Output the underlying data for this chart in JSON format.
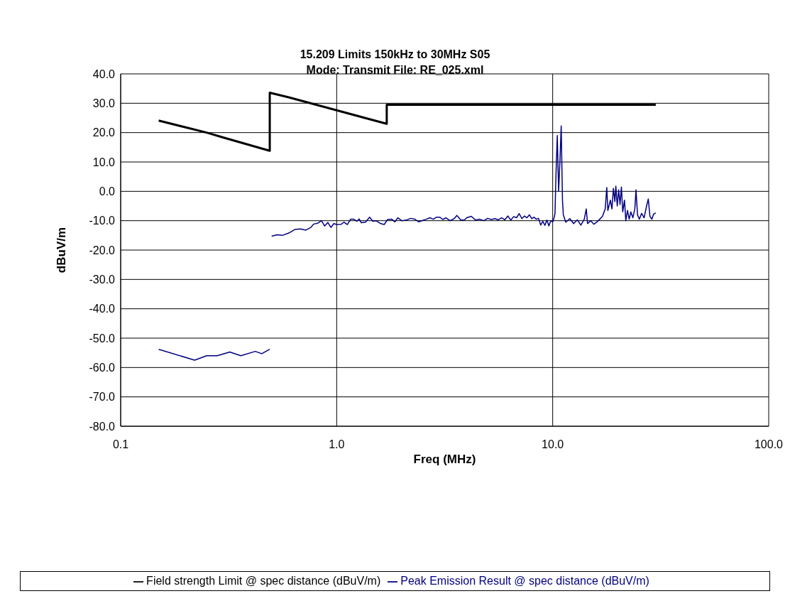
{
  "chart_data": {
    "type": "line",
    "title": "15.209 Limits 150kHz to 30MHz S05",
    "subtitle": "Mode: Transmit File: RE_025.xml",
    "xlabel": "Freq (MHz)",
    "ylabel": "dBuV/m",
    "log": "x",
    "xlim": [
      0.1,
      100
    ],
    "xticks": [
      {
        "value": 0.1,
        "label": "0.1"
      },
      {
        "value": 1,
        "label": "1.0"
      },
      {
        "value": 10,
        "label": "10.0"
      },
      {
        "value": 100,
        "label": "100.0"
      }
    ],
    "ylim": [
      -80,
      40
    ],
    "yticks": [
      {
        "value": -80,
        "label": "-80.0"
      },
      {
        "value": -70,
        "label": "-70.0"
      },
      {
        "value": -60,
        "label": "-60.0"
      },
      {
        "value": -50,
        "label": "-50.0"
      },
      {
        "value": -40,
        "label": "-40.0"
      },
      {
        "value": -30,
        "label": "-30.0"
      },
      {
        "value": -20,
        "label": "-20.0"
      },
      {
        "value": -10,
        "label": "-10.0"
      },
      {
        "value": 0,
        "label": "0.0"
      },
      {
        "value": 10,
        "label": "10.0"
      },
      {
        "value": 20,
        "label": "20.0"
      },
      {
        "value": 30,
        "label": "30.0"
      },
      {
        "value": 40,
        "label": "40.0"
      }
    ],
    "grid": true,
    "legend": "bottom",
    "marker": "none",
    "line_style": "solid",
    "series": [
      {
        "name": "Field strength Limit @ spec distance (dBuV/m)",
        "color": "#000000",
        "x": [
          0.15,
          0.25,
          0.3,
          0.49,
          0.49,
          0.6,
          1.0,
          1.705,
          1.705,
          30
        ],
        "values": [
          24.1,
          20,
          18.3,
          13.8,
          33.6,
          32,
          27.6,
          23,
          29.5,
          29.5
        ]
      },
      {
        "name": "Peak Emission Result @ spec distance (dBuV/m)",
        "color": "#000080",
        "x": [
          0.15,
          0.22,
          0.25,
          0.28,
          0.32,
          0.36,
          0.42,
          0.45,
          0.49,
          0.495,
          0.5,
          0.53,
          0.56,
          0.6,
          0.64,
          0.68,
          0.72,
          0.76,
          0.78,
          0.82,
          0.85,
          0.88,
          0.91,
          0.94,
          0.97,
          1.0,
          1.05,
          1.08,
          1.12,
          1.16,
          1.2,
          1.24,
          1.27,
          1.3,
          1.36,
          1.42,
          1.47,
          1.52,
          1.6,
          1.66,
          1.72,
          1.8,
          1.86,
          1.92,
          2.0,
          2.1,
          2.2,
          2.3,
          2.4,
          2.5,
          2.6,
          2.7,
          2.8,
          2.9,
          3.0,
          3.1,
          3.2,
          3.35,
          3.5,
          3.6,
          3.75,
          3.9,
          4.0,
          4.2,
          4.4,
          4.6,
          4.8,
          5.0,
          5.2,
          5.4,
          5.6,
          5.8,
          6.0,
          6.2,
          6.4,
          6.6,
          6.8,
          7.0,
          7.2,
          7.4,
          7.6,
          7.8,
          8.0,
          8.2,
          8.4,
          8.6,
          8.8,
          9.0,
          9.2,
          9.4,
          9.6,
          9.8,
          10.0,
          10.15,
          10.25,
          10.35,
          10.5,
          10.65,
          10.8,
          10.95,
          11.1,
          11.2,
          11.5,
          12,
          12.5,
          13.0,
          13.5,
          14.0,
          14.3,
          14.5,
          15.0,
          15.5,
          16.0,
          16.5,
          17.0,
          17.5,
          17.8,
          18.0,
          18.5,
          18.8,
          19.1,
          19.4,
          19.6,
          19.9,
          20.2,
          20.5,
          20.8,
          21.1,
          21.5,
          21.8,
          22.2,
          22.6,
          23.0,
          23.5,
          24.0,
          24.3,
          24.7,
          25.2,
          25.8,
          26.5,
          27.2,
          27.7,
          28.2,
          28.8,
          29.3,
          30.0
        ],
        "values": [
          -53.8,
          -57.5,
          -56,
          -56,
          -54.7,
          -56,
          -54.5,
          -55.3,
          -53.8,
          null,
          -15.3,
          -14.8,
          -15.0,
          -14.2,
          -13.0,
          -12.8,
          -13.2,
          -12.3,
          -11.2,
          -10.8,
          -10.0,
          -11.8,
          -10.6,
          -12.3,
          -11.0,
          -11.3,
          -11.2,
          -10.5,
          -11.3,
          -9.5,
          -9.5,
          -10.2,
          -9.4,
          -10.7,
          -10.5,
          -8.8,
          -10.2,
          -10.0,
          -11.0,
          -11.3,
          -9.6,
          -9.5,
          -10.4,
          -9.0,
          -10.0,
          -9.8,
          -9.2,
          -9.5,
          -10.4,
          -9.9,
          -9.5,
          -9.0,
          -9.5,
          -8.8,
          -8.8,
          -9.6,
          -9.0,
          -10.0,
          -9.3,
          -8.2,
          -9.7,
          -9.8,
          -9.0,
          -8.5,
          -9.8,
          -9.5,
          -10.0,
          -9.2,
          -9.6,
          -9.3,
          -9.7,
          -9.0,
          -9.7,
          -8.4,
          -9.8,
          -8.6,
          -9.0,
          -7.6,
          -9.3,
          -8.4,
          -9.0,
          -8.0,
          -9.3,
          -8.8,
          -9.5,
          -9.2,
          -11.5,
          -10.2,
          -11.6,
          -9.8,
          -11.8,
          -10.0,
          -10.4,
          -9.0,
          -7.5,
          5.0,
          19.0,
          0.0,
          10.0,
          22.3,
          -3.0,
          -8.0,
          -10.5,
          -9.3,
          -11.0,
          -9.7,
          -11.5,
          -9.5,
          -6.0,
          -11.0,
          -10.0,
          -11.2,
          -10.5,
          -9.5,
          -8.5,
          -6.0,
          1.3,
          -6.5,
          -3.0,
          -6.0,
          1.0,
          -3.5,
          1.8,
          -5.0,
          0.5,
          -4.5,
          1.5,
          -7.0,
          -3.0,
          -10.0,
          -6.5,
          -9.5,
          -7.0,
          -9.0,
          -6.0,
          0.5,
          -8.0,
          -9.5,
          -7.5,
          -9.0,
          -5.0,
          -2.6,
          -8.5,
          -9.5,
          -7.8,
          -7.3
        ]
      }
    ]
  }
}
